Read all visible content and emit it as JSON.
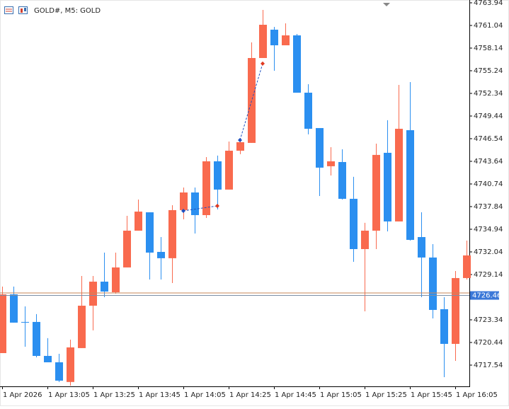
{
  "chart_data": {
    "type": "candlestick",
    "title": "GOLD#, M5: GOLD",
    "categories": [
      "1 Apr 2026",
      null,
      null,
      null,
      "1 Apr 13:05",
      null,
      null,
      null,
      "1 Apr 13:25",
      null,
      null,
      null,
      "1 Apr 13:45",
      null,
      null,
      null,
      "1 Apr 14:05",
      null,
      null,
      null,
      "1 Apr 14:25",
      null,
      null,
      null,
      "1 Apr 14:45",
      null,
      null,
      null,
      "1 Apr 15:05",
      null,
      null,
      null,
      "1 Apr 15:25",
      null,
      null,
      null,
      "1 Apr 15:45",
      null,
      null,
      null,
      "1 Apr 16:05",
      null
    ],
    "open": [
      4719.08,
      4726.6,
      4723.07,
      4723.07,
      4718.72,
      4717.9,
      4715.38,
      4719.72,
      4725.15,
      4728.23,
      4726.87,
      4730.05,
      4734.76,
      4737.11,
      4732.04,
      4731.23,
      4737.39,
      4739.65,
      4736.75,
      4743.64,
      4740.02,
      4745.0,
      4746.0,
      4756.87,
      4760.5,
      4758.5,
      4759.77,
      4752.43,
      4747.9,
      4743.01,
      4743.55,
      4738.84,
      4732.4,
      4734.76,
      4744.73,
      4735.94,
      4747.63,
      4733.94,
      4731.32,
      4724.7,
      4720.26,
      4728.69
    ],
    "high": [
      4727.6,
      4727.6,
      4725.06,
      4724.07,
      4720.99,
      4718.99,
      4720.8,
      4728.96,
      4728.96,
      4731.95,
      4731.95,
      4736.66,
      4738.75,
      4737.11,
      4733.94,
      4738.02,
      4740.29,
      4740.29,
      4744.18,
      4744.37,
      4746.18,
      4746.63,
      4758.87,
      4763.03,
      4760.86,
      4761.31,
      4759.95,
      4753.52,
      4747.9,
      4745.45,
      4745.18,
      4741.65,
      4735.76,
      4745.9,
      4748.9,
      4753.43,
      4753.79,
      4737.11,
      4733.04,
      4726.24,
      4729.59,
      4733.49
    ],
    "low": [
      4719.08,
      4722.98,
      4719.9,
      4718.54,
      4717.9,
      4715.38,
      4714.91,
      4719.72,
      4721.99,
      4726.24,
      4726.69,
      4730.05,
      4734.76,
      4728.5,
      4728.5,
      4728.05,
      4736.21,
      4734.4,
      4736.39,
      4737.48,
      4740.02,
      4744.55,
      4746.0,
      4756.87,
      4755.24,
      4758.5,
      4752.43,
      4747.09,
      4739.2,
      4741.83,
      4738.75,
      4730.77,
      4724.43,
      4732.4,
      4734.67,
      4735.94,
      4733.49,
      4726.24,
      4723.52,
      4716.0,
      4718.08,
      4728.5
    ],
    "close": [
      4726.6,
      4722.98,
      4722.98,
      4718.72,
      4717.9,
      4715.55,
      4719.81,
      4725.15,
      4728.23,
      4726.96,
      4730.05,
      4734.76,
      4737.2,
      4731.95,
      4731.23,
      4737.39,
      4739.65,
      4736.75,
      4743.64,
      4740.02,
      4745.0,
      4746.09,
      4756.87,
      4761.13,
      4758.5,
      4759.77,
      4752.43,
      4747.81,
      4742.83,
      4743.64,
      4738.84,
      4732.4,
      4734.76,
      4744.46,
      4735.94,
      4747.81,
      4733.58,
      4731.32,
      4724.61,
      4720.26,
      4728.69,
      4731.59
    ],
    "up_color": "#f96a4e",
    "down_color": "#2b8ff0",
    "buy_markers": [
      null,
      null,
      null,
      null,
      null,
      null,
      null,
      null,
      null,
      null,
      null,
      null,
      null,
      null,
      null,
      null,
      4737.3,
      null,
      null,
      null,
      null,
      4746.36,
      null,
      null,
      null,
      null,
      null,
      null,
      null,
      null,
      null,
      null,
      null,
      null,
      null,
      null,
      null,
      null,
      null,
      null,
      null,
      null
    ],
    "sell_markers": [
      null,
      null,
      null,
      null,
      null,
      null,
      null,
      null,
      null,
      null,
      null,
      null,
      null,
      null,
      null,
      null,
      null,
      null,
      null,
      4737.93,
      null,
      null,
      null,
      4756.15,
      null,
      null,
      null,
      null,
      null,
      null,
      null,
      null,
      null,
      null,
      null,
      null,
      null,
      null,
      null,
      null,
      null,
      null
    ],
    "ask_line": 4726.78,
    "current_price": 4726.46,
    "ylim": [
      4714.82,
      4764.3
    ],
    "yticks": [
      4763.94,
      4761.04,
      4758.14,
      4755.24,
      4752.34,
      4749.44,
      4746.54,
      4743.64,
      4740.74,
      4737.84,
      4734.94,
      4732.04,
      4729.14,
      4723.34,
      4720.44,
      4717.54
    ]
  }
}
